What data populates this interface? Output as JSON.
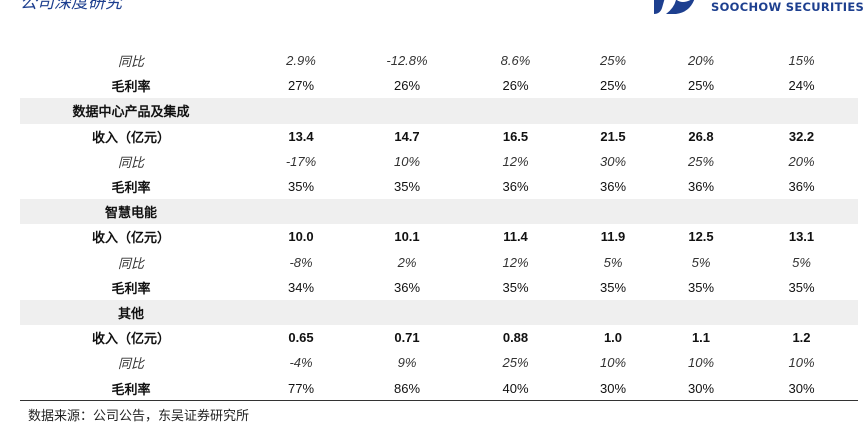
{
  "header": {
    "title": "公司深度研究",
    "logo_text": "SOOCHOW SECURITIES"
  },
  "colors": {
    "brand": "#1d3f8f",
    "row_shade": "#efefef",
    "rule": "#333333"
  },
  "rows": [
    {
      "type": "yoy",
      "label": "同比",
      "values": [
        "2.9%",
        "-12.8%",
        "8.6%",
        "25%",
        "20%",
        "15%"
      ],
      "shade": false
    },
    {
      "type": "margin",
      "label": "毛利率",
      "values": [
        "27%",
        "26%",
        "26%",
        "25%",
        "25%",
        "24%"
      ],
      "shade": false
    },
    {
      "type": "section",
      "label": "数据中心产品及集成",
      "values": [],
      "shade": true
    },
    {
      "type": "bold",
      "label": "收入（亿元）",
      "values": [
        "13.4",
        "14.7",
        "16.5",
        "21.5",
        "26.8",
        "32.2"
      ],
      "shade": false
    },
    {
      "type": "yoy",
      "label": "同比",
      "values": [
        "-17%",
        "10%",
        "12%",
        "30%",
        "25%",
        "20%"
      ],
      "shade": false
    },
    {
      "type": "margin",
      "label": "毛利率",
      "values": [
        "35%",
        "35%",
        "36%",
        "36%",
        "36%",
        "36%"
      ],
      "shade": false
    },
    {
      "type": "section",
      "label": "智慧电能",
      "values": [],
      "shade": true
    },
    {
      "type": "bold",
      "label": "收入（亿元）",
      "values": [
        "10.0",
        "10.1",
        "11.4",
        "11.9",
        "12.5",
        "13.1"
      ],
      "shade": false
    },
    {
      "type": "yoy",
      "label": "同比",
      "values": [
        "-8%",
        "2%",
        "12%",
        "5%",
        "5%",
        "5%"
      ],
      "shade": false
    },
    {
      "type": "margin",
      "label": "毛利率",
      "values": [
        "34%",
        "36%",
        "35%",
        "35%",
        "35%",
        "35%"
      ],
      "shade": false
    },
    {
      "type": "section",
      "label": "其他",
      "values": [],
      "shade": true
    },
    {
      "type": "bold",
      "label": "收入（亿元）",
      "values": [
        "0.65",
        "0.71",
        "0.88",
        "1.0",
        "1.1",
        "1.2"
      ],
      "shade": false
    },
    {
      "type": "yoy",
      "label": "同比",
      "values": [
        "-4%",
        "9%",
        "25%",
        "10%",
        "10%",
        "10%"
      ],
      "shade": false
    },
    {
      "type": "margin",
      "label": "毛利率",
      "values": [
        "77%",
        "86%",
        "40%",
        "30%",
        "30%",
        "30%"
      ],
      "shade": false
    }
  ],
  "footer": {
    "source": "数据来源：公司公告，东吴证券研究所"
  }
}
